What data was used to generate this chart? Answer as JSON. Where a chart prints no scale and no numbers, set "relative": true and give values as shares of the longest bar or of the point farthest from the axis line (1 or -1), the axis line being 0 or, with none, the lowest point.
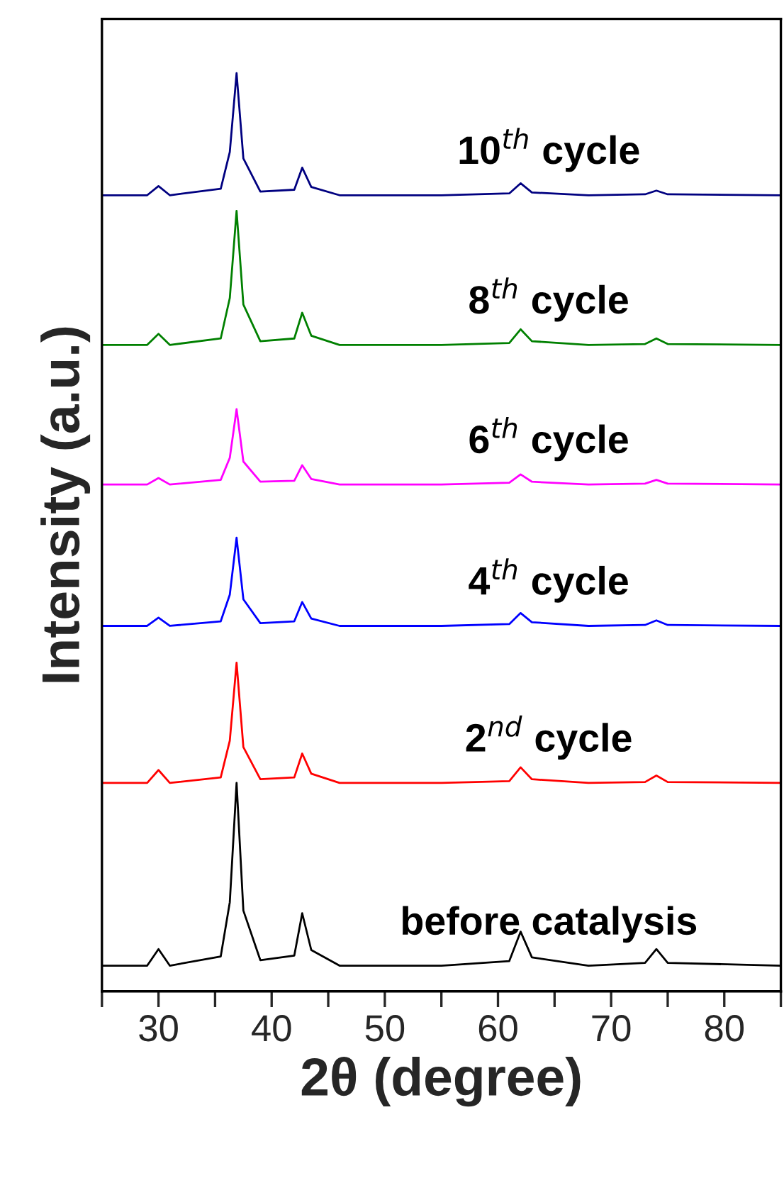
{
  "chart_data": {
    "type": "line",
    "xlabel": "2θ (degree)",
    "ylabel": "Intensity (a.u.)",
    "relative": true,
    "tick_labels": "x",
    "grid": false,
    "legend": false,
    "xlim": [
      25,
      85
    ],
    "xticks": [
      {
        "value": 25,
        "label": null
      },
      30,
      {
        "value": 35,
        "label": null
      },
      40,
      {
        "value": 45,
        "label": null
      },
      50,
      {
        "value": 55,
        "label": null
      },
      60,
      {
        "value": 65,
        "label": null
      },
      70,
      {
        "value": 75,
        "label": null
      },
      80,
      {
        "value": 85,
        "label": null
      }
    ],
    "x": [
      25,
      29,
      30,
      31,
      35.5,
      36.3,
      36.9,
      37.5,
      39,
      42,
      42.7,
      43.5,
      46,
      55,
      61,
      62,
      63,
      68,
      73,
      74,
      75,
      85
    ],
    "series": [
      {
        "name": "before catalysis",
        "color": "#000000",
        "values": [
          0.028,
          0.028,
          0.046,
          0.028,
          0.038,
          0.097,
          0.227,
          0.088,
          0.034,
          0.039,
          0.085,
          0.045,
          0.028,
          0.028,
          0.033,
          0.065,
          0.037,
          0.028,
          0.031,
          0.046,
          0.031,
          0.028
        ]
      },
      {
        "name": "2$^{nd}$ cycle",
        "color": "#ff0000",
        "values": [
          0.227,
          0.227,
          0.241,
          0.227,
          0.233,
          0.273,
          0.358,
          0.266,
          0.231,
          0.233,
          0.259,
          0.237,
          0.227,
          0.227,
          0.229,
          0.244,
          0.231,
          0.227,
          0.228,
          0.235,
          0.228,
          0.227
        ]
      },
      {
        "name": "4$^{th}$ cycle",
        "color": "#0000ff",
        "values": [
          0.398,
          0.398,
          0.407,
          0.398,
          0.403,
          0.432,
          0.494,
          0.427,
          0.401,
          0.403,
          0.424,
          0.406,
          0.398,
          0.398,
          0.4,
          0.412,
          0.402,
          0.398,
          0.399,
          0.404,
          0.399,
          0.398
        ]
      },
      {
        "name": "6$^{th}$ cycle",
        "color": "#ff00ff",
        "values": [
          0.552,
          0.552,
          0.559,
          0.552,
          0.557,
          0.581,
          0.634,
          0.577,
          0.555,
          0.556,
          0.573,
          0.558,
          0.552,
          0.552,
          0.554,
          0.563,
          0.555,
          0.552,
          0.553,
          0.557,
          0.553,
          0.552
        ]
      },
      {
        "name": "8$^{th}$ cycle",
        "color": "#008000",
        "values": [
          0.704,
          0.704,
          0.716,
          0.704,
          0.711,
          0.755,
          0.85,
          0.748,
          0.708,
          0.711,
          0.739,
          0.714,
          0.704,
          0.704,
          0.706,
          0.721,
          0.708,
          0.704,
          0.705,
          0.711,
          0.705,
          0.704
        ]
      },
      {
        "name": "10$^{th}$ cycle",
        "color": "#000080",
        "values": [
          0.867,
          0.867,
          0.877,
          0.867,
          0.874,
          0.914,
          1.0,
          0.907,
          0.871,
          0.873,
          0.897,
          0.876,
          0.867,
          0.867,
          0.869,
          0.88,
          0.87,
          0.867,
          0.868,
          0.872,
          0.868,
          0.867
        ]
      }
    ]
  }
}
